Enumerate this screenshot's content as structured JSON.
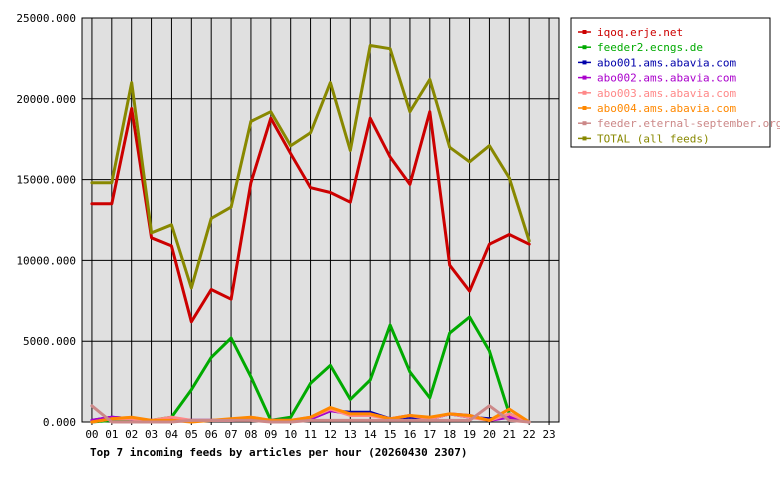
{
  "chart_data": {
    "type": "line",
    "title": "Top 7 incoming feeds by articles per hour (20260430 2307)",
    "xlabel": "",
    "ylabel": "",
    "ylim": [
      0,
      25000
    ],
    "yticks": [
      "0.000",
      "5000.000",
      "10000.000",
      "15000.000",
      "20000.000",
      "25000.000"
    ],
    "categories": [
      "00",
      "01",
      "02",
      "03",
      "04",
      "05",
      "06",
      "07",
      "08",
      "09",
      "10",
      "11",
      "12",
      "13",
      "14",
      "15",
      "16",
      "17",
      "18",
      "19",
      "20",
      "21",
      "22",
      "23"
    ],
    "grid": true,
    "legend_position": "right",
    "plot_background": "#e0e0e0",
    "series": [
      {
        "name": "iqoq.erje.net",
        "color": "#cc0000",
        "values": [
          13500,
          13500,
          19400,
          11400,
          10900,
          6200,
          8200,
          7600,
          14800,
          18800,
          16600,
          14500,
          14200,
          13600,
          18800,
          16400,
          14700,
          19200,
          9700,
          8100,
          11000,
          11600,
          11000,
          null
        ]
      },
      {
        "name": "feeder2.ecngs.de",
        "color": "#00aa00",
        "values": [
          0,
          100,
          200,
          100,
          300,
          2000,
          4000,
          5200,
          2800,
          100,
          300,
          2400,
          3500,
          1400,
          2600,
          6000,
          3100,
          1500,
          5500,
          6500,
          4400,
          500,
          0,
          null
        ]
      },
      {
        "name": "abo001.ams.abavia.com",
        "color": "#0000aa",
        "values": [
          100,
          300,
          200,
          100,
          200,
          100,
          100,
          100,
          200,
          100,
          100,
          200,
          700,
          600,
          600,
          200,
          300,
          200,
          500,
          300,
          200,
          300,
          0,
          null
        ]
      },
      {
        "name": "abo002.ams.abavia.com",
        "color": "#aa00cc",
        "values": [
          100,
          300,
          200,
          100,
          200,
          100,
          100,
          100,
          200,
          100,
          100,
          200,
          700,
          500,
          500,
          200,
          400,
          200,
          500,
          400,
          100,
          300,
          0,
          null
        ]
      },
      {
        "name": "abo003.ams.abavia.com",
        "color": "#ff8888",
        "values": [
          0,
          200,
          200,
          100,
          300,
          100,
          100,
          100,
          300,
          100,
          100,
          300,
          800,
          400,
          400,
          200,
          400,
          200,
          500,
          300,
          100,
          500,
          0,
          null
        ]
      },
      {
        "name": "abo004.ams.abavia.com",
        "color": "#ff8800",
        "values": [
          0,
          200,
          300,
          100,
          100,
          0,
          100,
          200,
          300,
          100,
          100,
          300,
          900,
          500,
          500,
          200,
          400,
          300,
          500,
          400,
          100,
          800,
          0,
          null
        ]
      },
      {
        "name": "feeder.eternal-september.org",
        "color": "#cc8888",
        "values": [
          1000,
          0,
          0,
          0,
          0,
          100,
          100,
          100,
          100,
          0,
          0,
          100,
          100,
          100,
          100,
          100,
          100,
          100,
          100,
          100,
          1000,
          100,
          0,
          null
        ]
      },
      {
        "name": "TOTAL (all feeds)",
        "color": "#888800",
        "values": [
          14800,
          14800,
          21000,
          11700,
          12200,
          8300,
          12600,
          13300,
          18600,
          19200,
          17100,
          17900,
          21000,
          16800,
          23300,
          23100,
          19200,
          21200,
          17000,
          16100,
          17100,
          15100,
          11200,
          null
        ]
      }
    ]
  }
}
